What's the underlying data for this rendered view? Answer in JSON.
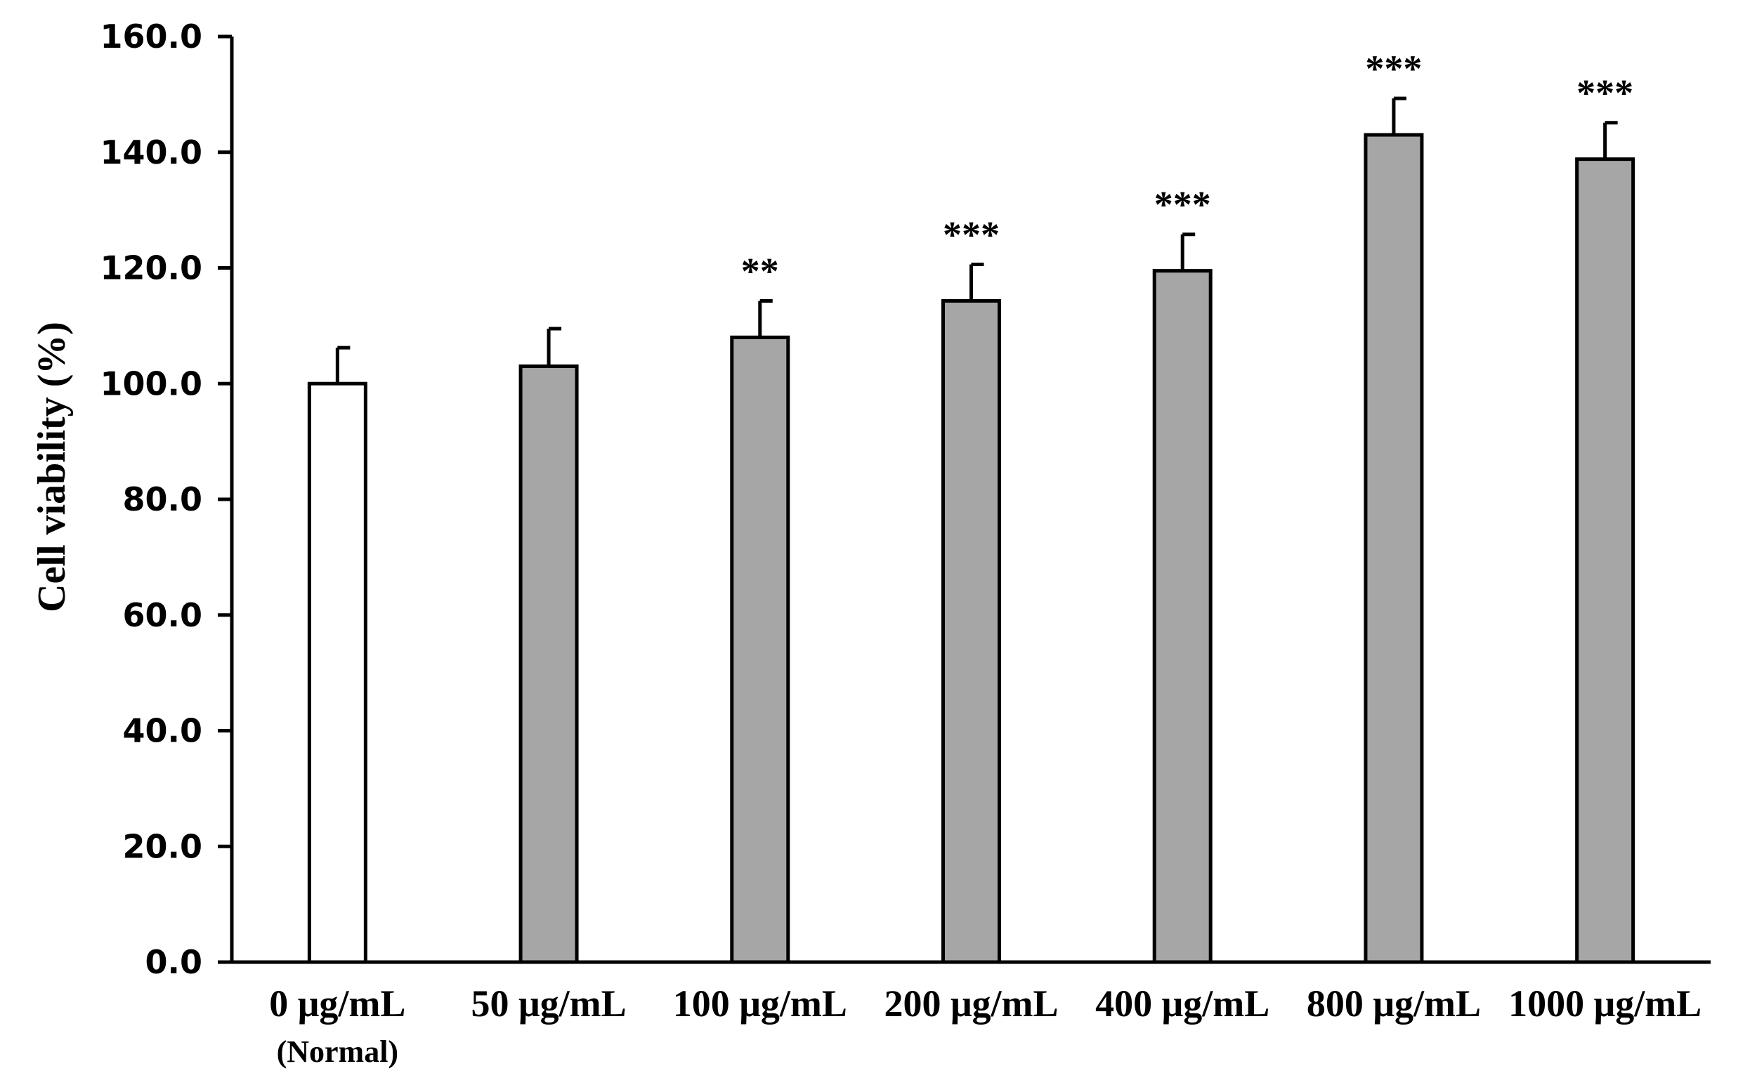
{
  "chart_data": {
    "type": "bar",
    "title": "",
    "xlabel": "",
    "ylabel": "Cell viability (%)",
    "ylim": [
      0,
      160
    ],
    "yticks": [
      "0.0",
      "20.0",
      "40.0",
      "60.0",
      "80.0",
      "100.0",
      "120.0",
      "140.0",
      "160.0"
    ],
    "categories": [
      "0 μg/mL",
      "50 μg/mL",
      "100 μg/mL",
      "200 μg/mL",
      "400 μg/mL",
      "800 μg/mL",
      "1000 μg/mL"
    ],
    "category_sublabels": [
      "(Normal)",
      "",
      "",
      "",
      "",
      "",
      ""
    ],
    "values": [
      100.0,
      103.0,
      108.0,
      114.3,
      119.5,
      143.0,
      138.8
    ],
    "errors": [
      6.2,
      6.5,
      6.3,
      6.3,
      6.3,
      6.3,
      6.3
    ],
    "significance": [
      "",
      "",
      "**",
      "***",
      "***",
      "***",
      "***"
    ],
    "bar_colors": [
      "#ffffff",
      "#a6a6a6",
      "#a6a6a6",
      "#a6a6a6",
      "#a6a6a6",
      "#a6a6a6",
      "#a6a6a6"
    ],
    "grid": false,
    "legend": "none"
  }
}
